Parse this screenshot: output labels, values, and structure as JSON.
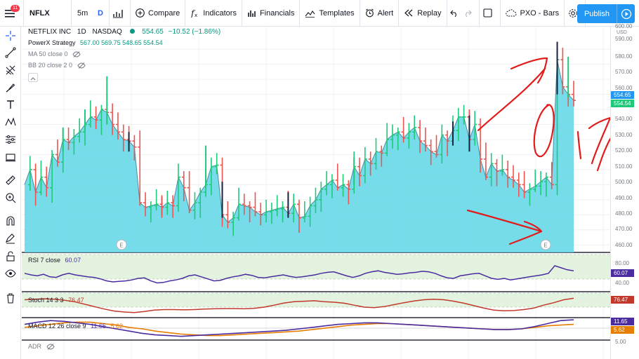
{
  "toolbar": {
    "notification_count": "11",
    "symbol": "NFLX",
    "interval": "5m",
    "interval_dropdown": "D",
    "compare": "Compare",
    "indicators": "Indicators",
    "financials": "Financials",
    "templates": "Templates",
    "alert": "Alert",
    "replay": "Replay",
    "layout_name": "PXO - Bars",
    "publish": "Publish"
  },
  "legend": {
    "title": "NETFLIX INC",
    "interval": "1D",
    "exchange": "NASDAQ",
    "price": "554.65",
    "change": "−10.52 (−1.86%)",
    "strategy_name": "PowerX Strategy",
    "strategy_values": "567.00  569.75  548.65  554.54",
    "ma": "MA 50 close 0",
    "bb": "BB 20 close 2 0"
  },
  "indicators": {
    "rsi": {
      "label": "RSI 7 close",
      "value": "60.07"
    },
    "stoch": {
      "label": "Stoch 14 3 3",
      "value": "76.47"
    },
    "macd": {
      "label": "MACD 12 26 close 9",
      "value1": "11.65",
      "value2": "5.62"
    },
    "adr": {
      "label": "ADR"
    }
  },
  "earnings_marker": "E",
  "price_scale": {
    "currency": "USD",
    "ticks": [
      "600.00",
      "590.00",
      "580.00",
      "570.00",
      "560.00",
      "540.00",
      "530.00",
      "520.00",
      "510.00",
      "500.00",
      "490.00",
      "480.00",
      "470.00",
      "460.00"
    ],
    "tag_price": "554.65",
    "tag_strategy": "554.54",
    "rsi_ticks": [
      "80.00",
      "40.00"
    ],
    "rsi_tag": "60.07",
    "stoch_tag": "76.47",
    "macd_tag1": "11.65",
    "macd_tag2": "5.62",
    "adr_tick": "5.00"
  },
  "colors": {
    "accent": "#2196f3",
    "bull": "#26a69a",
    "bull_bar": "#1ec97a",
    "bear_bar": "#ef5350",
    "area_fill": "#5fd6e6",
    "indicator_bg": "#e4f3df",
    "rsi_line": "#4a2ca0",
    "stoch_line": "#c0392b",
    "macd_line": "#4a2ca0",
    "signal_line": "#e67e00",
    "annotation": "#e21b1b"
  },
  "chart_data": {
    "type": "area",
    "title": "NETFLIX INC",
    "ylim": [
      455,
      605
    ],
    "grid": true,
    "closes": [
      500,
      510,
      495,
      505,
      498,
      520,
      515,
      530,
      528,
      532,
      535,
      540,
      545,
      543,
      550,
      548,
      540,
      535,
      530,
      529,
      525,
      488,
      485,
      486,
      487,
      485,
      488,
      486,
      505,
      498,
      483,
      488,
      495,
      500,
      512,
      513,
      480,
      475,
      478,
      487,
      486,
      485,
      482,
      480,
      482,
      483,
      484,
      485,
      481,
      487,
      478,
      479,
      486,
      490,
      497,
      500,
      503,
      498,
      500,
      497,
      512,
      506,
      517,
      514,
      522,
      521,
      530,
      533,
      535,
      531,
      535,
      538,
      529,
      526,
      522,
      520,
      533,
      529,
      536,
      545,
      545,
      530,
      540,
      517,
      505,
      514,
      509,
      510,
      505,
      503,
      500,
      495,
      497,
      499,
      502,
      505,
      500,
      583,
      565,
      560,
      556
    ],
    "signal_bars": [
      {
        "i": 7,
        "low": 522,
        "high": 538,
        "color": "green"
      },
      {
        "i": 11,
        "low": 536,
        "high": 550,
        "color": "green"
      },
      {
        "i": 15,
        "low": 540,
        "high": 572,
        "color": "green"
      },
      {
        "i": 19,
        "low": 522,
        "high": 535,
        "color": "dark"
      },
      {
        "i": 25,
        "low": 480,
        "high": 492,
        "color": "red"
      },
      {
        "i": 33,
        "low": 498,
        "high": 526,
        "color": "green"
      },
      {
        "i": 36,
        "low": 478,
        "high": 502,
        "color": "dark"
      },
      {
        "i": 48,
        "low": 478,
        "high": 495,
        "color": "dark"
      },
      {
        "i": 60,
        "low": 500,
        "high": 518,
        "color": "green"
      },
      {
        "i": 78,
        "low": 526,
        "high": 542,
        "color": "dark"
      },
      {
        "i": 81,
        "low": 522,
        "high": 546,
        "color": "dark"
      },
      {
        "i": 97,
        "low": 560,
        "high": 595,
        "color": "dark"
      },
      {
        "i": 99,
        "low": 558,
        "high": 585,
        "color": "green"
      }
    ],
    "rsi": [
      55,
      52,
      50,
      53,
      48,
      47,
      52,
      55,
      52,
      50,
      48,
      47,
      44,
      40,
      38,
      39,
      40,
      42,
      45,
      46,
      40,
      36,
      37,
      40,
      42,
      45,
      50,
      52,
      48,
      44,
      40,
      41,
      45,
      48,
      50,
      53,
      51,
      47,
      46,
      48,
      50,
      52,
      49,
      47,
      48,
      50,
      52,
      55,
      57,
      58,
      54,
      50,
      47,
      50,
      55,
      58,
      60,
      57,
      55,
      53,
      54,
      56,
      57,
      59,
      58,
      55,
      50,
      46,
      45,
      50,
      52,
      54,
      55,
      50,
      45,
      43,
      45,
      42,
      44,
      46,
      48,
      50,
      52,
      55,
      70,
      66,
      62,
      60
    ],
    "stoch": [
      70,
      72,
      74,
      72,
      68,
      62,
      52,
      42,
      32,
      24,
      20,
      18,
      22,
      28,
      30,
      30,
      29,
      30,
      32,
      33,
      34,
      34,
      33,
      35,
      40,
      48,
      57,
      62,
      64,
      66,
      62,
      60,
      56,
      48,
      40,
      38,
      42,
      50,
      58,
      65,
      70,
      72,
      70,
      64,
      56,
      46,
      36,
      28,
      25,
      26,
      30,
      36,
      48,
      58,
      70,
      76
    ],
    "macd_hist": [
      6,
      9,
      11,
      10,
      8,
      6,
      3,
      0,
      -3,
      -6,
      -8,
      -9,
      -10,
      -9,
      -8,
      -7,
      -6,
      -5,
      -4,
      -3,
      -2,
      0,
      2,
      4,
      6,
      7,
      8,
      8,
      7,
      6,
      5,
      4,
      3,
      2,
      1,
      0,
      -1,
      -1,
      0,
      3,
      7,
      11,
      12
    ],
    "macd_signal": [
      2,
      4,
      6,
      8,
      9,
      9,
      7,
      5,
      2,
      0,
      -3,
      -5,
      -7,
      -8,
      -9,
      -9,
      -8,
      -7,
      -6,
      -5,
      -4,
      -3,
      -1,
      1,
      3,
      5,
      6,
      7,
      7,
      6,
      5,
      4,
      3,
      2,
      1,
      0,
      -1,
      -1,
      0,
      2,
      4,
      5,
      6
    ]
  }
}
